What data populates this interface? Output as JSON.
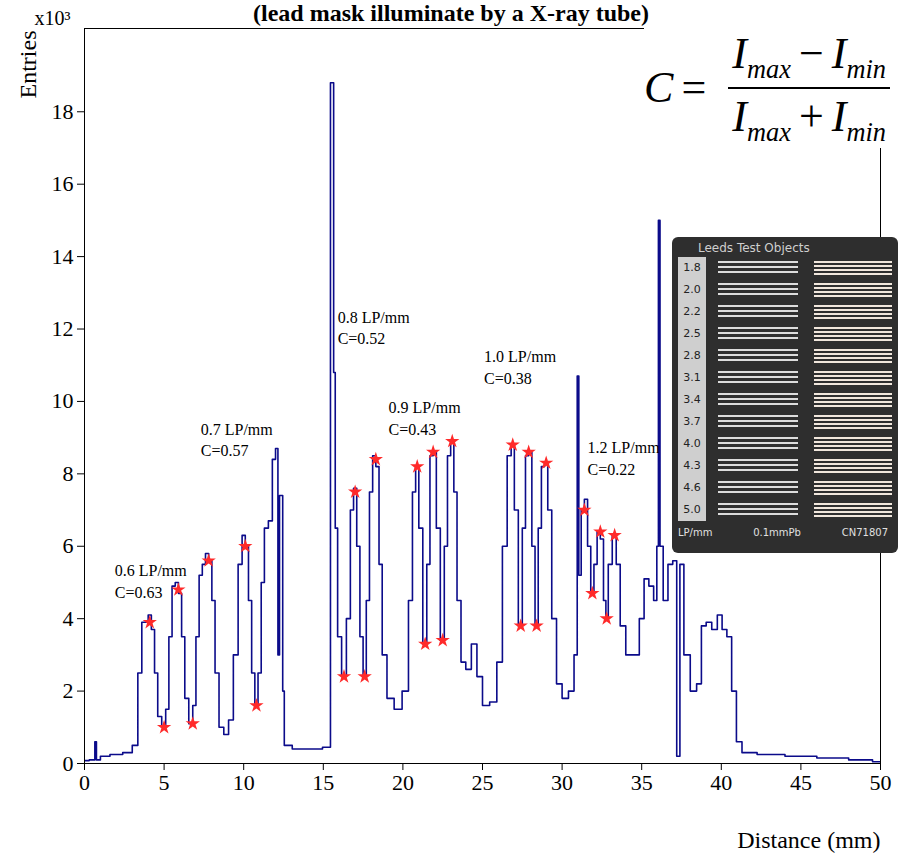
{
  "chart_data": {
    "type": "line",
    "title": "(lead mask illuminate by a X-ray tube)",
    "x_label": "Distance (mm)",
    "y_label": "Entries",
    "y_multiplier": "x10³",
    "xlim": [
      0,
      50
    ],
    "ylim": [
      0,
      20.3
    ],
    "xticks": [
      0,
      5,
      10,
      15,
      20,
      25,
      30,
      35,
      40,
      45,
      50
    ],
    "yticks": [
      0,
      2,
      4,
      6,
      8,
      10,
      12,
      14,
      16,
      18
    ],
    "grid": false,
    "series": [
      {
        "type": "line",
        "color": "#0b0b8a",
        "line_style": "step",
        "x": [
          0,
          0.6,
          0.7,
          0.8,
          1.2,
          2.0,
          2.8,
          3.2,
          3.5,
          3.7,
          3.9,
          4.1,
          4.3,
          4.5,
          4.7,
          5.0,
          5.2,
          5.4,
          5.6,
          5.8,
          6.0,
          6.2,
          6.4,
          6.7,
          6.9,
          7.1,
          7.3,
          7.5,
          7.7,
          7.9,
          8.1,
          8.3,
          8.6,
          8.9,
          9.2,
          9.5,
          9.8,
          10.0,
          10.2,
          10.4,
          10.6,
          10.8,
          11.0,
          11.2,
          11.4,
          11.7,
          11.9,
          12.1,
          12.2,
          12.3,
          12.4,
          12.5,
          12.6,
          13.5,
          14.5,
          15.4,
          15.5,
          15.6,
          15.7,
          15.8,
          16.0,
          16.3,
          16.6,
          16.8,
          17.0,
          17.2,
          17.4,
          17.6,
          17.8,
          18.0,
          18.2,
          18.4,
          18.6,
          18.8,
          19.2,
          19.7,
          20.2,
          20.5,
          20.7,
          20.9,
          21.1,
          21.4,
          21.6,
          21.8,
          22.0,
          22.2,
          22.5,
          22.7,
          22.9,
          23.1,
          23.3,
          23.5,
          23.8,
          24.1,
          24.5,
          24.8,
          25.2,
          25.7,
          26.1,
          26.4,
          26.7,
          26.9,
          27.1,
          27.4,
          27.6,
          27.8,
          28.0,
          28.2,
          28.4,
          28.6,
          28.8,
          29.0,
          29.2,
          29.5,
          29.8,
          30.2,
          30.6,
          30.9,
          31.0,
          31.1,
          31.3,
          31.5,
          31.7,
          31.9,
          32.1,
          32.3,
          32.5,
          32.7,
          32.8,
          33.0,
          33.3,
          33.5,
          33.8,
          34.2,
          34.7,
          35.0,
          35.3,
          35.6,
          35.9,
          36.0,
          36.1,
          36.2,
          36.5,
          36.8,
          37.1,
          37.3,
          37.5,
          37.8,
          38.3,
          38.6,
          38.9,
          39.2,
          39.6,
          39.9,
          40.2,
          40.5,
          40.8,
          41.1,
          41.5,
          43.0,
          45.0,
          47.0,
          49.0,
          50.0
        ],
        "values": [
          0.08,
          0.1,
          0.6,
          0.1,
          0.2,
          0.25,
          0.3,
          0.5,
          2.5,
          3.9,
          3.9,
          4.1,
          3.7,
          2.5,
          1.3,
          1.0,
          1.5,
          3.5,
          4.9,
          5.0,
          4.7,
          3.5,
          1.8,
          1.1,
          1.6,
          3.5,
          5.2,
          5.5,
          5.8,
          5.6,
          4.5,
          2.5,
          1.0,
          0.8,
          1.2,
          3.0,
          5.5,
          6.3,
          6.0,
          4.5,
          2.5,
          1.6,
          2.5,
          5.0,
          6.5,
          6.7,
          8.4,
          8.7,
          3.0,
          7.4,
          7.4,
          2.0,
          0.5,
          0.4,
          0.4,
          0.45,
          18.8,
          18.8,
          10.8,
          6.5,
          3.5,
          2.4,
          4.0,
          7.0,
          7.6,
          6.0,
          3.5,
          2.4,
          4.5,
          7.5,
          8.5,
          8.2,
          5.5,
          3.0,
          1.8,
          1.5,
          2.0,
          4.5,
          7.5,
          8.2,
          6.5,
          3.3,
          5.5,
          8.5,
          8.6,
          6.5,
          3.4,
          6.0,
          8.5,
          8.9,
          7.5,
          4.5,
          2.8,
          2.6,
          3.3,
          2.4,
          1.6,
          1.7,
          2.8,
          6.0,
          8.5,
          8.8,
          7.0,
          3.8,
          6.5,
          8.5,
          8.6,
          6.0,
          3.8,
          6.5,
          8.2,
          8.3,
          7.0,
          4.0,
          2.2,
          1.8,
          2.0,
          3.0,
          10.7,
          5.2,
          7.0,
          7.3,
          6.0,
          4.7,
          5.5,
          6.4,
          6.2,
          4.5,
          4.0,
          5.5,
          6.3,
          5.5,
          3.8,
          3.0,
          3.0,
          4.0,
          5.1,
          4.9,
          4.5,
          6.0,
          15.0,
          6.0,
          4.5,
          5.5,
          5.6,
          0.2,
          5.5,
          3.0,
          2.0,
          2.2,
          3.8,
          3.9,
          3.7,
          4.1,
          3.7,
          3.5,
          2.0,
          0.6,
          0.3,
          0.25,
          0.2,
          0.15,
          0.1,
          0.05
        ]
      },
      {
        "type": "scatter",
        "color": "#ff2a2a",
        "marker": "star",
        "x": [
          4.1,
          5.0,
          5.9,
          6.8,
          7.8,
          10.1,
          10.8,
          16.3,
          17.0,
          17.6,
          18.3,
          20.9,
          21.4,
          21.9,
          22.5,
          23.1,
          26.9,
          27.4,
          27.9,
          28.4,
          29.0,
          31.4,
          31.9,
          32.4,
          32.8,
          33.3
        ],
        "values": [
          3.9,
          1.0,
          4.8,
          1.1,
          5.6,
          6.0,
          1.6,
          2.4,
          7.5,
          2.4,
          8.4,
          8.2,
          3.3,
          8.6,
          3.4,
          8.9,
          8.8,
          3.8,
          8.6,
          3.8,
          8.3,
          7.0,
          4.7,
          6.4,
          4.0,
          6.3
        ]
      }
    ],
    "annotations": [
      {
        "x": 1.9,
        "y": 5.6,
        "text": [
          "0.6 LP/mm",
          "C=0.63"
        ]
      },
      {
        "x": 7.3,
        "y": 9.5,
        "text": [
          "0.7 LP/mm",
          "C=0.57"
        ]
      },
      {
        "x": 15.9,
        "y": 12.6,
        "text": [
          "0.8 LP/mm",
          "C=0.52"
        ]
      },
      {
        "x": 19.1,
        "y": 10.1,
        "text": [
          "0.9 LP/mm",
          "C=0.43"
        ]
      },
      {
        "x": 25.1,
        "y": 11.5,
        "text": [
          "1.0 LP/mm",
          "C=0.38"
        ]
      },
      {
        "x": 31.6,
        "y": 9.0,
        "text": [
          "1.2 LP/mm",
          "C=0.22"
        ]
      }
    ],
    "formula": {
      "lhs": "C",
      "numerator": [
        {
          "symbol": "I",
          "subscript": "max"
        },
        "−",
        {
          "symbol": "I",
          "subscript": "min"
        }
      ],
      "denominator": [
        {
          "symbol": "I",
          "subscript": "max"
        },
        "+",
        {
          "symbol": "I",
          "subscript": "min"
        }
      ]
    },
    "inset": {
      "title": "Leeds Test Objects",
      "labels": [
        "1.8",
        "2.0",
        "2.2",
        "2.5",
        "2.8",
        "3.1",
        "3.4",
        "3.7",
        "4.0",
        "4.3",
        "4.6",
        "5.0"
      ],
      "footer": [
        "LP/mm",
        "0.1mmPb",
        "CN71807"
      ]
    }
  }
}
